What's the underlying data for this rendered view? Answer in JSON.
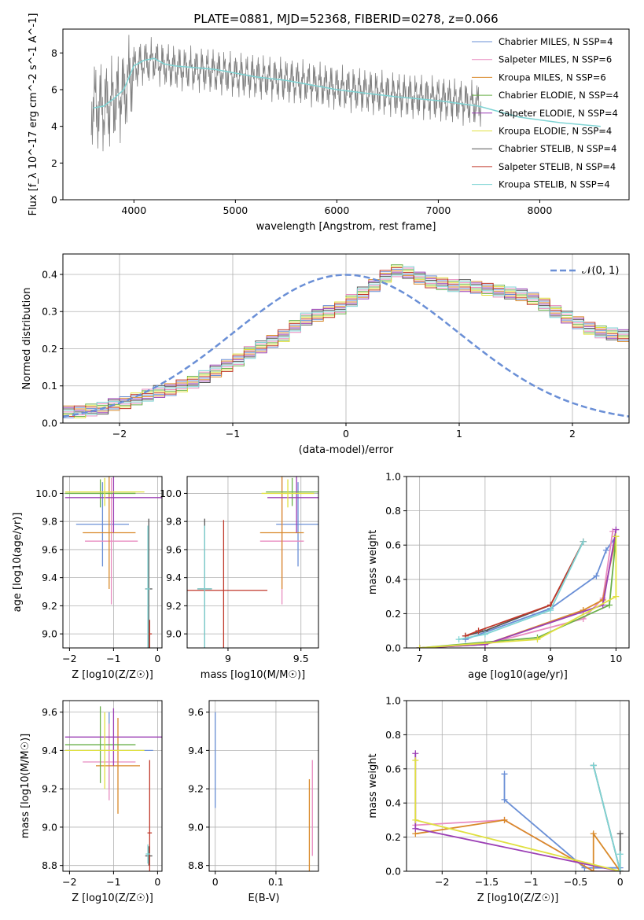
{
  "figure": {
    "title": "PLATE=0881, MJD=52368, FIBERID=0278, z=0.066",
    "legend": [
      "Chabrier MILES, N_SSP=4",
      "Salpeter MILES, N_SSP=6",
      "Kroupa MILES, N_SSP=6",
      "Chabrier ELODIE, N_SSP=4",
      "Salpeter ELODIE, N_SSP=4",
      "Kroupa ELODIE, N_SSP=4",
      "Chabrier STELIB, N_SSP=4",
      "Salpeter STELIB, N_SSP=4",
      "Kroupa STELIB, N_SSP=4"
    ],
    "model_colors": [
      "#6a8fd6",
      "#e88cc0",
      "#d98a2a",
      "#6ab04a",
      "#9b3fb5",
      "#e0e040",
      "#555555",
      "#c0392b",
      "#7fd4d4"
    ]
  },
  "chart_data": [
    {
      "type": "line",
      "title": "PLATE=0881, MJD=52368, FIBERID=0278, z=0.066",
      "xlabel": "wavelength [Angstrom, rest frame]",
      "ylabel": "Flux [f_λ 10^-17 erg cm^-2 s^-1 A^-1]",
      "xlim": [
        3300,
        8880
      ],
      "ylim": [
        0,
        9.3
      ],
      "xticks": [
        4000,
        5000,
        6000,
        7000,
        8000
      ],
      "yticks": [
        0,
        2,
        4,
        6,
        8
      ],
      "legend_position": "top-right",
      "series": [
        {
          "name": "data",
          "color": "#808080",
          "x": [
            3600,
            3700,
            3800,
            3900,
            4000,
            4100,
            4200,
            4300,
            4400,
            4600,
            4800,
            5000,
            5200,
            5500,
            5800,
            6000,
            6300,
            6600,
            7000,
            7400
          ],
          "y": [
            5.2,
            5.0,
            5.4,
            5.8,
            7.2,
            7.5,
            7.6,
            7.3,
            7.2,
            7.1,
            7.0,
            6.8,
            6.7,
            6.5,
            6.3,
            6.1,
            5.9,
            5.7,
            5.5,
            5.2
          ]
        },
        {
          "name": "model",
          "color": "#7fd4d4",
          "x": [
            3600,
            3700,
            3800,
            3900,
            4000,
            4100,
            4200,
            4300,
            4400,
            4600,
            4800,
            5000,
            5200,
            5500,
            5800,
            6000,
            6300,
            6600,
            7000,
            7400,
            7800,
            8200,
            8600
          ],
          "y": [
            5.0,
            5.1,
            5.5,
            6.0,
            7.3,
            7.6,
            7.7,
            7.4,
            7.3,
            7.2,
            7.1,
            6.9,
            6.7,
            6.5,
            6.2,
            6.0,
            5.8,
            5.6,
            5.4,
            5.1,
            4.5,
            4.2,
            4.0
          ]
        }
      ]
    },
    {
      "type": "bar",
      "xlabel": "(data-model)/error",
      "ylabel": "Normed distribution",
      "xlim": [
        -2.5,
        2.5
      ],
      "ylim": [
        0,
        0.455
      ],
      "xticks": [
        -2,
        -1,
        0,
        1,
        2
      ],
      "yticks": [
        0.0,
        0.1,
        0.2,
        0.3,
        0.4
      ],
      "legend": "𝒩(0, 1)",
      "legend_position": "top-right",
      "bin_edges_start": -2.5,
      "bin_width": 0.1,
      "hist": [
        0.03,
        0.03,
        0.035,
        0.04,
        0.05,
        0.055,
        0.065,
        0.075,
        0.085,
        0.09,
        0.1,
        0.11,
        0.125,
        0.14,
        0.155,
        0.17,
        0.19,
        0.205,
        0.22,
        0.235,
        0.26,
        0.28,
        0.29,
        0.3,
        0.31,
        0.33,
        0.35,
        0.37,
        0.395,
        0.41,
        0.405,
        0.39,
        0.38,
        0.375,
        0.37,
        0.37,
        0.365,
        0.36,
        0.355,
        0.35,
        0.345,
        0.335,
        0.32,
        0.3,
        0.285,
        0.27,
        0.255,
        0.245,
        0.24,
        0.235,
        0.225,
        0.21,
        0.19,
        0.17,
        0.15,
        0.135,
        0.12,
        0.105,
        0.095,
        0.09,
        0.08,
        0.065,
        0.055,
        0.05,
        0.045,
        0.04,
        0.035,
        0.035,
        0.03,
        0.03
      ]
    },
    {
      "type": "scatter",
      "xlabel": "Z [log10(Z/Z☉)]",
      "ylabel": "age  [log10(age/yr)]",
      "xlim": [
        -2.15,
        0.1
      ],
      "ylim": [
        8.9,
        10.12
      ],
      "xticks": [
        -2,
        -1,
        0
      ],
      "yticks": [
        9.0,
        9.2,
        9.4,
        9.6,
        9.8,
        10.0
      ],
      "points": [
        {
          "x": -1.25,
          "y": 9.78,
          "xe": 0.6,
          "ye": 0.3
        },
        {
          "x": -1.05,
          "y": 9.66,
          "xe": 0.6,
          "ye": 0.45
        },
        {
          "x": -1.1,
          "y": 9.72,
          "xe": 0.6,
          "ye": 0.4
        },
        {
          "x": -1.3,
          "y": 10.0,
          "xe": 0.8,
          "ye": 0.1
        },
        {
          "x": -1.0,
          "y": 9.97,
          "xe": 1.1,
          "ye": 0.25
        },
        {
          "x": -1.2,
          "y": 10.01,
          "xe": 0.9,
          "ye": 0.1
        },
        {
          "x": -0.2,
          "y": 9.32,
          "xe": 0.08,
          "ye": 0.5
        },
        {
          "x": -0.18,
          "y": 9.0,
          "xe": 0.05,
          "ye": 0.1
        },
        {
          "x": -0.22,
          "y": 9.32,
          "xe": 0.05,
          "ye": 0.45
        }
      ]
    },
    {
      "type": "scatter",
      "xlabel": "mass [log10(M/M☉)]",
      "ylabel": "",
      "xlim": [
        8.72,
        9.62
      ],
      "ylim": [
        8.9,
        10.12
      ],
      "xticks": [
        9.0,
        9.5
      ],
      "yticks": [
        9.0,
        9.2,
        9.4,
        9.6,
        9.8,
        10.0
      ],
      "points": [
        {
          "x": 9.48,
          "y": 9.78,
          "xe": 0.15,
          "ye": 0.3
        },
        {
          "x": 9.37,
          "y": 9.66,
          "xe": 0.15,
          "ye": 0.45
        },
        {
          "x": 9.37,
          "y": 9.72,
          "xe": 0.15,
          "ye": 0.4
        },
        {
          "x": 9.44,
          "y": 10.01,
          "xe": 0.18,
          "ye": 0.1
        },
        {
          "x": 9.47,
          "y": 9.97,
          "xe": 0.2,
          "ye": 0.25
        },
        {
          "x": 9.41,
          "y": 10.0,
          "xe": 0.18,
          "ye": 0.1
        },
        {
          "x": 8.84,
          "y": 9.32,
          "xe": 0.05,
          "ye": 0.5
        },
        {
          "x": 8.97,
          "y": 9.31,
          "xe": 0.3,
          "ye": 0.5
        },
        {
          "x": 8.84,
          "y": 9.32,
          "xe": 0.05,
          "ye": 0.45
        }
      ]
    },
    {
      "type": "line",
      "xlabel": "age  [log10(age/yr)]",
      "ylabel": "mass weight",
      "xlim": [
        6.8,
        10.2
      ],
      "ylim": [
        0,
        1.0
      ],
      "xticks": [
        7,
        8,
        9,
        10
      ],
      "yticks": [
        0.0,
        0.2,
        0.4,
        0.6,
        0.8,
        1.0
      ],
      "series": [
        {
          "name": "Chabrier MILES",
          "x": [
            7.7,
            9.0,
            9.7,
            9.85,
            10.0
          ],
          "y": [
            0.05,
            0.23,
            0.42,
            0.57,
            0.65
          ]
        },
        {
          "name": "Salpeter MILES",
          "x": [
            7.0,
            8.0,
            9.5,
            9.8,
            9.95
          ],
          "y": [
            0.0,
            0.02,
            0.17,
            0.29,
            0.68
          ]
        },
        {
          "name": "Kroupa MILES",
          "x": [
            7.0,
            8.0,
            9.5,
            9.8,
            10.0
          ],
          "y": [
            0.0,
            0.02,
            0.22,
            0.28,
            0.65
          ]
        },
        {
          "name": "Chabrier ELODIE",
          "x": [
            7.0,
            8.8,
            9.9,
            10.0
          ],
          "y": [
            0.0,
            0.06,
            0.25,
            0.65
          ]
        },
        {
          "name": "Salpeter ELODIE",
          "x": [
            7.0,
            8.0,
            9.8,
            10.0
          ],
          "y": [
            0.0,
            0.02,
            0.25,
            0.69
          ]
        },
        {
          "name": "Kroupa ELODIE",
          "x": [
            7.0,
            8.8,
            10.0,
            10.0
          ],
          "y": [
            0.0,
            0.05,
            0.3,
            0.65
          ]
        },
        {
          "name": "Chabrier STELIB",
          "x": [
            7.7,
            8.0,
            9.0,
            9.5
          ],
          "y": [
            0.07,
            0.1,
            0.25,
            0.62
          ]
        },
        {
          "name": "Salpeter STELIB",
          "x": [
            7.7,
            7.9,
            9.0,
            9.5
          ],
          "y": [
            0.07,
            0.1,
            0.25,
            0.62
          ]
        },
        {
          "name": "Kroupa STELIB",
          "x": [
            7.6,
            8.0,
            9.0,
            9.5
          ],
          "y": [
            0.05,
            0.08,
            0.22,
            0.62
          ]
        }
      ]
    },
    {
      "type": "scatter",
      "xlabel": "Z [log10(Z/Z☉)]",
      "ylabel": "mass [log10(M/M☉)]",
      "xlim": [
        -2.15,
        0.1
      ],
      "ylim": [
        8.77,
        9.66
      ],
      "xticks": [
        -2,
        -1,
        0
      ],
      "yticks": [
        8.8,
        9.0,
        9.2,
        9.4,
        9.6
      ],
      "points": [
        {
          "x": -1.1,
          "y": 9.4,
          "xe": 1.0,
          "ye": 0.2
        },
        {
          "x": -1.1,
          "y": 9.34,
          "xe": 0.6,
          "ye": 0.2
        },
        {
          "x": -0.9,
          "y": 9.32,
          "xe": 0.5,
          "ye": 0.25
        },
        {
          "x": -1.3,
          "y": 9.43,
          "xe": 0.8,
          "ye": 0.2
        },
        {
          "x": -1.0,
          "y": 9.47,
          "xe": 1.1,
          "ye": 0.15
        },
        {
          "x": -1.2,
          "y": 9.4,
          "xe": 0.9,
          "ye": 0.2
        },
        {
          "x": -0.2,
          "y": 8.85,
          "xe": 0.08,
          "ye": 0.05
        },
        {
          "x": -0.18,
          "y": 8.97,
          "xe": 0.05,
          "ye": 0.38
        },
        {
          "x": -0.22,
          "y": 8.86,
          "xe": 0.05,
          "ye": 0.05
        }
      ]
    },
    {
      "type": "scatter",
      "xlabel": "E(B-V)",
      "ylabel": "",
      "xlim": [
        -0.01,
        0.17
      ],
      "ylim": [
        8.77,
        9.66
      ],
      "xticks": [
        0.0,
        0.1
      ],
      "yticks": [
        8.8,
        9.0,
        9.2,
        9.4,
        9.6
      ],
      "points": [
        {
          "x": 0.0,
          "y": 9.35,
          "xe": 0.0,
          "ye": 0.25
        },
        {
          "x": 0.16,
          "y": 9.1,
          "xe": 0.0,
          "ye": 0.25
        },
        {
          "x": 0.155,
          "y": 9.0,
          "xe": 0.0,
          "ye": 0.25
        }
      ]
    },
    {
      "type": "line",
      "xlabel": "Z [log10(Z/Z☉)]",
      "ylabel": "mass weight",
      "xlim": [
        -2.4,
        0.1
      ],
      "ylim": [
        0,
        1.0
      ],
      "xticks": [
        -2.0,
        -1.5,
        -1.0,
        -0.5,
        0.0
      ],
      "yticks": [
        0.0,
        0.2,
        0.4,
        0.6,
        0.8,
        1.0
      ],
      "series": [
        {
          "name": "Chabrier MILES",
          "x": [
            -1.3,
            -1.3,
            -0.4,
            0.0
          ],
          "y": [
            0.57,
            0.42,
            0.02,
            0.02
          ]
        },
        {
          "name": "Salpeter MILES",
          "x": [
            -2.3,
            -1.3,
            -0.3,
            0.0
          ],
          "y": [
            0.27,
            0.3,
            0.0,
            0.0
          ]
        },
        {
          "name": "Kroupa MILES",
          "x": [
            -2.3,
            -1.3,
            -0.3,
            -0.3,
            0.0
          ],
          "y": [
            0.22,
            0.3,
            0.0,
            0.22,
            0.0
          ]
        },
        {
          "name": "Salpeter ELODIE",
          "x": [
            -2.3,
            -2.3,
            0.0
          ],
          "y": [
            0.69,
            0.25,
            0.0
          ]
        },
        {
          "name": "Kroupa ELODIE",
          "x": [
            -2.3,
            -2.3,
            0.0
          ],
          "y": [
            0.65,
            0.3,
            0.0
          ]
        },
        {
          "name": "Chabrier STELIB",
          "x": [
            -0.3,
            0.0,
            0.0
          ],
          "y": [
            0.62,
            0.0,
            0.22
          ]
        },
        {
          "name": "Kroupa STELIB",
          "x": [
            -0.3,
            0.0,
            0.0
          ],
          "y": [
            0.62,
            0.0,
            0.1
          ]
        }
      ]
    }
  ]
}
